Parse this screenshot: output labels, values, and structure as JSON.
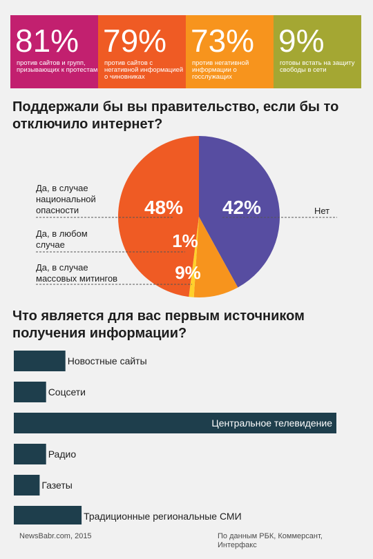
{
  "stats": [
    {
      "percent": "81%",
      "text": "против сайтов и групп, призывающих к протестам",
      "color": "#c2206f"
    },
    {
      "percent": "79%",
      "text": "против сайтов с негативной информацией о чиновниках",
      "color": "#ef5b24"
    },
    {
      "percent": "73%",
      "text": "против негативной информации о госслужащих",
      "color": "#f7941d"
    },
    {
      "percent": "9%",
      "text": "готовы встать на защиту свободы в сети",
      "color": "#a4a733"
    }
  ],
  "question1": "Поддержали бы вы правительство, если бы то отключило интернет?",
  "question2": "Что является для вас первым источником получения информации?",
  "chart_data": [
    {
      "type": "pie",
      "slices": [
        {
          "label": "Нет",
          "value": 42,
          "display": "42%",
          "color": "#574da1"
        },
        {
          "label": "Да, в случае массовых митингов",
          "value": 9,
          "display": "9%",
          "color": "#f7941d"
        },
        {
          "label": "Да, в любом случае",
          "value": 1,
          "display": "1%",
          "color": "#ffd12b"
        },
        {
          "label": "Да, в случае национальной опасности",
          "value": 48,
          "display": "48%",
          "color": "#ef5b24"
        }
      ]
    },
    {
      "type": "bar",
      "orientation": "horizontal",
      "color": "#1e3e4c",
      "categories": [
        "Новостные сайты",
        "Соцсети",
        "Центральное телевидение",
        "Радио",
        "Газеты",
        "Традиционные региональные СМИ"
      ],
      "values": [
        16,
        10,
        100,
        10,
        8,
        21
      ],
      "xlim": [
        0,
        100
      ]
    }
  ],
  "footer": {
    "source_left": "NewsBabr.com, 2015",
    "source_right": "По данным РБК, Коммерсант, Интерфакс"
  }
}
